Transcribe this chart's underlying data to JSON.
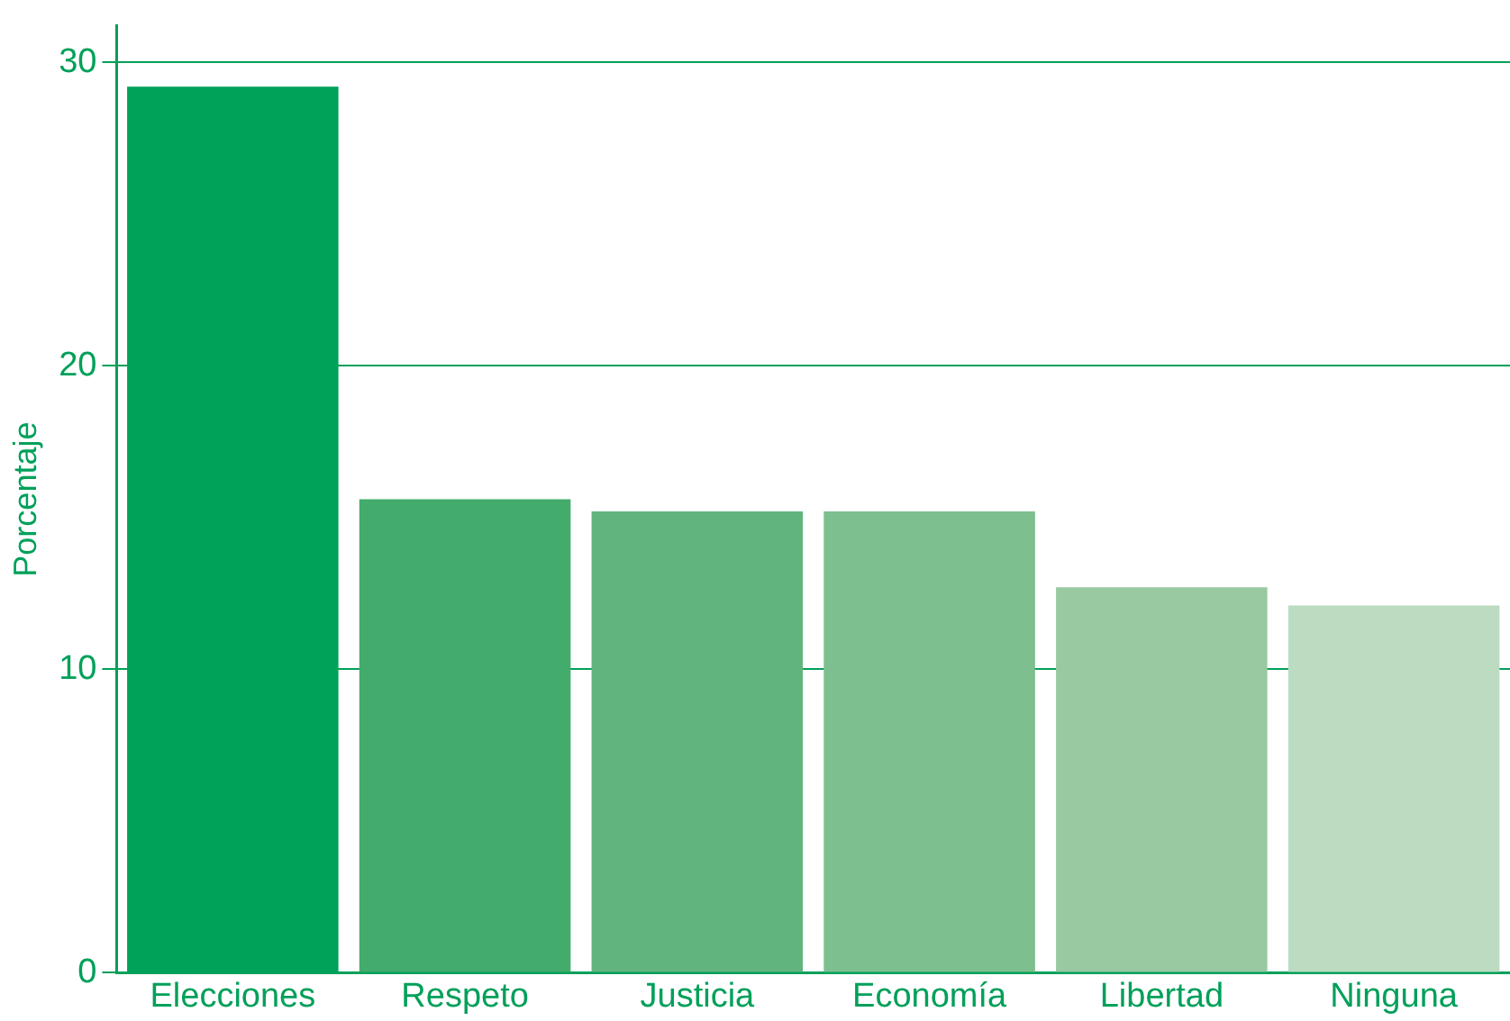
{
  "chart_data": {
    "type": "bar",
    "ylabel": "Porcentaje",
    "categories": [
      "Elecciones",
      "Respeto",
      "Justicia",
      "Economía",
      "Libertad",
      "Ninguna"
    ],
    "values": [
      29.2,
      15.6,
      15.2,
      15.2,
      12.7,
      12.1
    ],
    "colors": [
      "#00a25a",
      "#43ac6c",
      "#61b47e",
      "#7dbf8f",
      "#98c9a0",
      "#bcdcc2"
    ],
    "ylim": [
      0,
      31.2
    ],
    "yticks": [
      0,
      10,
      20,
      30
    ],
    "grid": "y",
    "legend": false
  }
}
